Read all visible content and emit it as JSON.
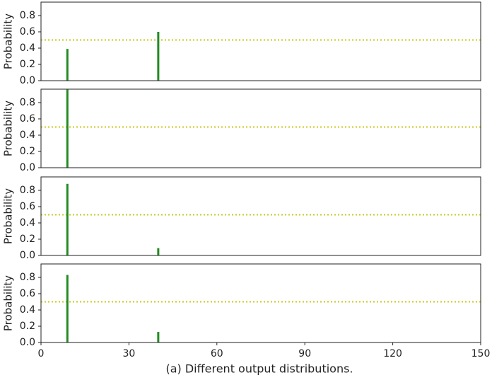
{
  "chart_data": [
    {
      "type": "bar",
      "ylabel": "Probability",
      "x": [
        9,
        40
      ],
      "values": [
        0.39,
        0.6
      ],
      "color": "#228b22",
      "xlim": [
        0,
        150
      ],
      "ylim": [
        0,
        0.965
      ],
      "yticks": [
        {
          "value": 0,
          "label": "0.0"
        },
        0.2,
        0.4,
        0.6,
        0.8
      ],
      "hline": 0.5,
      "hline_color": "#c8c81e"
    },
    {
      "type": "bar",
      "ylabel": "Probability",
      "x": [
        9
      ],
      "values": [
        0.96
      ],
      "color": "#228b22",
      "xlim": [
        0,
        150
      ],
      "ylim": [
        0,
        0.965
      ],
      "yticks": [
        {
          "value": 0,
          "label": "0.0"
        },
        0.2,
        0.4,
        0.6,
        0.8
      ],
      "hline": 0.5,
      "hline_color": "#c8c81e"
    },
    {
      "type": "bar",
      "ylabel": "Probability",
      "x": [
        9,
        40
      ],
      "values": [
        0.88,
        0.09
      ],
      "color": "#228b22",
      "xlim": [
        0,
        150
      ],
      "ylim": [
        0,
        0.965
      ],
      "yticks": [
        {
          "value": 0,
          "label": "0.0"
        },
        0.2,
        0.4,
        0.6,
        0.8
      ],
      "hline": 0.5,
      "hline_color": "#c8c81e"
    },
    {
      "type": "bar",
      "ylabel": "Probability",
      "x": [
        9,
        40
      ],
      "values": [
        0.83,
        0.13
      ],
      "color": "#228b22",
      "xlim": [
        0,
        150
      ],
      "ylim": [
        0,
        0.965
      ],
      "yticks": [
        {
          "value": 0,
          "label": "0.0"
        },
        0.2,
        0.4,
        0.6,
        0.8
      ],
      "hline": 0.5,
      "hline_color": "#c8c81e",
      "xticks": [
        0,
        30,
        60,
        90,
        120,
        150
      ],
      "xlabel": "(a) Different output distributions."
    }
  ]
}
